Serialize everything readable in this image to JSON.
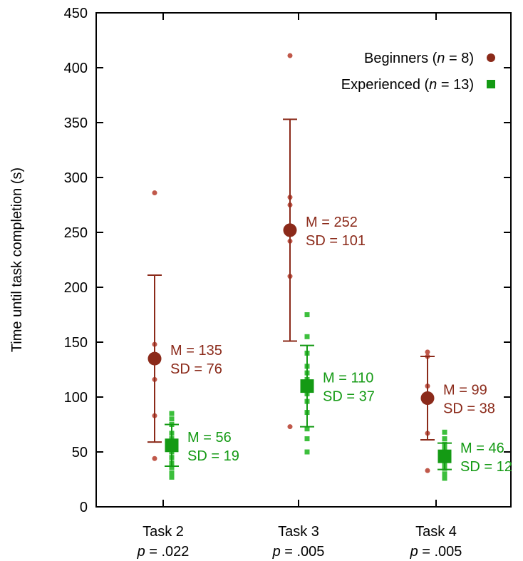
{
  "chart_data": {
    "type": "scatter",
    "title": "",
    "ylabel": "Time until task completion (s)",
    "xlabel": "",
    "ylim": [
      0,
      450
    ],
    "yticks": [
      0,
      50,
      100,
      150,
      200,
      250,
      300,
      350,
      400,
      450
    ],
    "grid": false,
    "legend_position": "top-right",
    "categories": [
      {
        "name": "Task 2",
        "p_prefix": "p",
        "p_value": " = .022"
      },
      {
        "name": "Task 3",
        "p_prefix": "p",
        "p_value": " = .005"
      },
      {
        "name": "Task 4",
        "p_prefix": "p",
        "p_value": " = .005"
      }
    ],
    "series": [
      {
        "id": "beginners",
        "legend_text": "Beginners (",
        "legend_n": "n",
        "legend_rest": " = 8)",
        "color": "#8b2a1a",
        "point_color": "#c0584a",
        "marker": "circle",
        "groups": [
          {
            "mean": 135,
            "sd": 76,
            "mean_label": "M = 135",
            "sd_label": "SD = 76",
            "points": [
              286,
              148,
              132,
              116,
              83,
              44
            ]
          },
          {
            "mean": 252,
            "sd": 101,
            "mean_label": "M = 252",
            "sd_label": "SD = 101",
            "points": [
              411,
              282,
              275,
              242,
              210,
              73
            ]
          },
          {
            "mean": 99,
            "sd": 38,
            "mean_label": "M = 99",
            "sd_label": "SD = 38",
            "points": [
              141,
              137,
              110,
              67,
              33
            ]
          }
        ]
      },
      {
        "id": "experienced",
        "legend_text": "Experienced (",
        "legend_n": "n",
        "legend_rest": " = 13)",
        "color": "#149a14",
        "point_color": "#3cbf3c",
        "marker": "square",
        "groups": [
          {
            "mean": 56,
            "sd": 19,
            "mean_label": "M = 56",
            "sd_label": "SD = 19",
            "points": [
              85,
              80,
              75,
              67,
              62,
              58,
              54,
              50,
              45,
              40,
              36,
              31,
              27
            ]
          },
          {
            "mean": 110,
            "sd": 37,
            "mean_label": "M = 110",
            "sd_label": "SD = 37",
            "points": [
              175,
              155,
              140,
              128,
              122,
              116,
              110,
              103,
              96,
              86,
              71,
              62,
              50
            ]
          },
          {
            "mean": 46,
            "sd": 12,
            "mean_label": "M = 46",
            "sd_label": "SD = 12",
            "points": [
              68,
              62,
              57,
              53,
              50,
              47,
              45,
              43,
              40,
              38,
              35,
              30,
              26
            ]
          }
        ]
      }
    ]
  }
}
